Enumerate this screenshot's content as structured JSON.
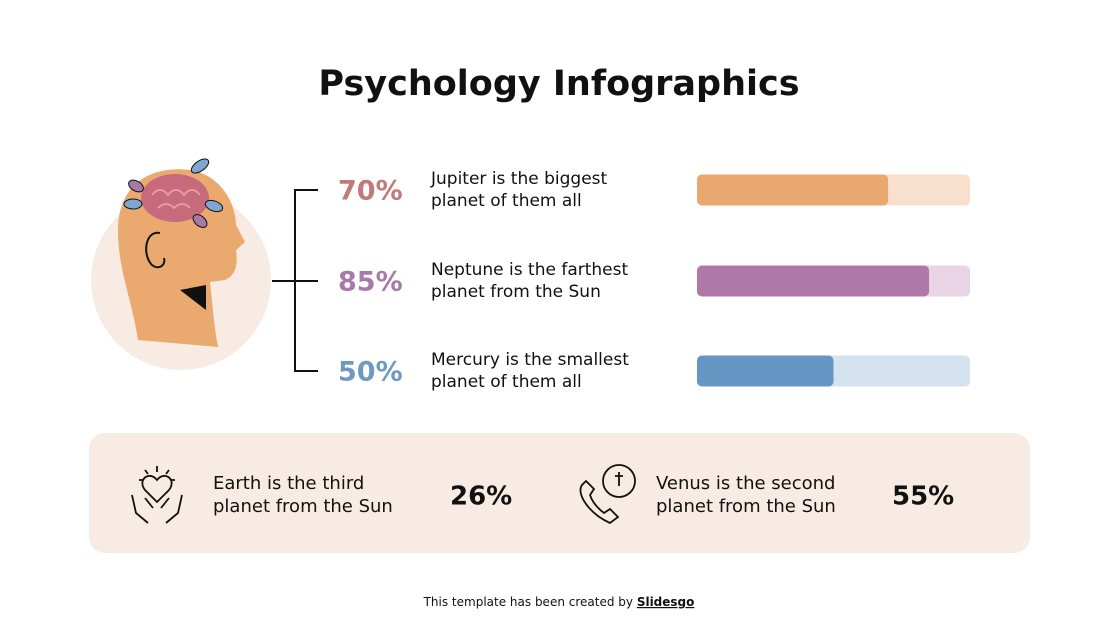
{
  "header": {
    "title": "Psychology Infographics"
  },
  "items": [
    {
      "label": "70%",
      "value": 70,
      "lines": [
        "Jupiter is the biggest",
        "planet of them all"
      ],
      "color": "#e8a86e",
      "track": "#f9e0cc",
      "text_color": "#c07a78"
    },
    {
      "label": "85%",
      "value": 85,
      "lines": [
        "Neptune is the farthest",
        "planet from the Sun"
      ],
      "color": "#ae78a9",
      "track": "#e8d4e4",
      "text_color": "#a879aa"
    },
    {
      "label": "50%",
      "value": 50,
      "lines": [
        "Mercury is the smallest",
        "planet of them all"
      ],
      "color": "#6596c4",
      "track": "#d5e2ef",
      "text_color": "#7099c2"
    }
  ],
  "facts": [
    {
      "lines": [
        "Earth is the third",
        "planet from the Sun"
      ],
      "label": "26%"
    },
    {
      "lines": [
        "Venus is the second",
        "planet from the Sun"
      ],
      "label": "55%"
    }
  ],
  "footer": {
    "text": "This template has been created by",
    "link": "Slidesgo"
  }
}
